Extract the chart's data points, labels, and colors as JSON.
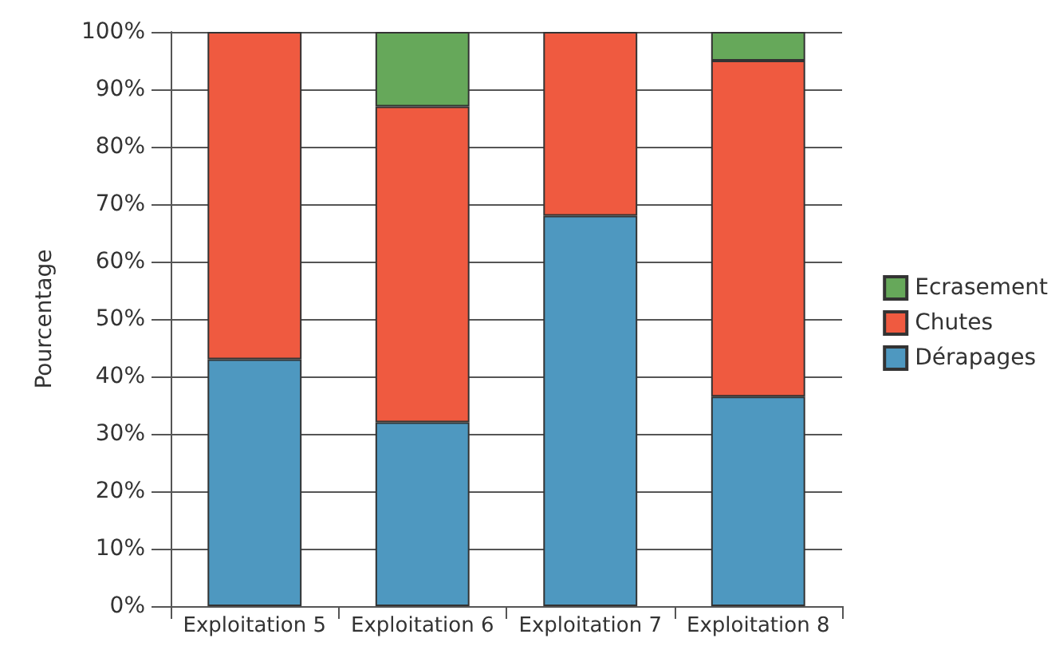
{
  "chart_data": {
    "type": "bar",
    "stacked": true,
    "ylabel": "Pourcentage",
    "categories": [
      "Exploitation 5",
      "Exploitation 6",
      "Exploitation 7",
      "Exploitation 8"
    ],
    "series": [
      {
        "name": "Dérapages",
        "color": "#4e98c0",
        "values": [
          43,
          32,
          68,
          36.5
        ]
      },
      {
        "name": "Chutes",
        "color": "#ef5a40",
        "values": [
          57,
          55,
          32,
          58.5
        ]
      },
      {
        "name": "Ecrasement",
        "color": "#66a85a",
        "values": [
          null,
          13,
          null,
          5
        ]
      }
    ],
    "ylim": [
      0,
      100
    ],
    "yticks": [
      {
        "value": 0,
        "label": "0%"
      },
      {
        "value": 10,
        "label": "10%"
      },
      {
        "value": 20,
        "label": "20%"
      },
      {
        "value": 30,
        "label": "30%"
      },
      {
        "value": 40,
        "label": "40%"
      },
      {
        "value": 50,
        "label": "50%"
      },
      {
        "value": 60,
        "label": "60%"
      },
      {
        "value": 70,
        "label": "70%"
      },
      {
        "value": 80,
        "label": "80%"
      },
      {
        "value": 90,
        "label": "90%"
      },
      {
        "value": 100,
        "label": "100%"
      }
    ],
    "grid": "y",
    "legend": "right"
  }
}
